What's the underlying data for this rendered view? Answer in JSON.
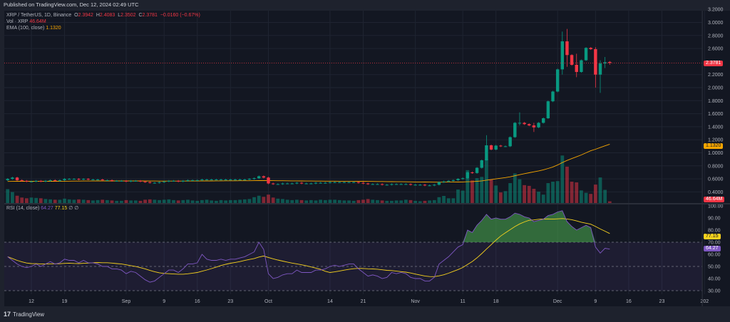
{
  "header": {
    "published": "Published on TradingView.com, Dec 12, 2024 02:49 UTC"
  },
  "legend": {
    "symbol": "XRP / TetherUS, 1D, Binance",
    "o_label": "O",
    "o": "2.3942",
    "h_label": "H",
    "h": "2.4083",
    "l_label": "L",
    "l": "2.3502",
    "c_label": "C",
    "c": "2.3781",
    "change": "−0.0160 (−0.67%)",
    "vol_label": "Vol · XRP",
    "vol": "46.64M",
    "ema_label": "EMA (100, close)",
    "ema": "1.1320",
    "rsi_label": "RSI (14, close)",
    "rsi": "64.27",
    "rsi_ma": "77.15",
    "icons": "∅ ∅"
  },
  "price_axis": [
    "3.2000",
    "3.0000",
    "2.8000",
    "2.6000",
    "2.2000",
    "2.0000",
    "1.8000",
    "1.6000",
    "1.4000",
    "1.2000",
    "1.0000",
    "0.8000",
    "0.6000",
    "0.4000"
  ],
  "rsi_axis": [
    "100.00",
    "90.00",
    "80.00",
    "70.00",
    "60.00",
    "50.00",
    "40.00",
    "30.00"
  ],
  "badges": {
    "price": "2.3781",
    "ema": "1.1320",
    "volume": "46.64M",
    "rsi_ma": "77.15",
    "rsi": "64.27"
  },
  "x_axis": [
    {
      "label": "12",
      "day": 5
    },
    {
      "label": "19",
      "day": 12
    },
    {
      "label": "Sep",
      "day": 25
    },
    {
      "label": "9",
      "day": 33
    },
    {
      "label": "16",
      "day": 40
    },
    {
      "label": "23",
      "day": 47
    },
    {
      "label": "Oct",
      "day": 55
    },
    {
      "label": "14",
      "day": 68
    },
    {
      "label": "21",
      "day": 75
    },
    {
      "label": "Nov",
      "day": 86
    },
    {
      "label": "11",
      "day": 96
    },
    {
      "label": "18",
      "day": 103
    },
    {
      "label": "Dec",
      "day": 116
    },
    {
      "label": "9",
      "day": 124
    },
    {
      "label": "16",
      "day": 131
    },
    {
      "label": "23",
      "day": 138
    },
    {
      "label": "202",
      "day": 147
    }
  ],
  "footer": {
    "logo": "17",
    "brand": "TradingView"
  },
  "colors": {
    "up": "#089981",
    "down": "#f23645",
    "ema": "#f7a600",
    "rsi": "#7e57c2",
    "rsi_ma": "#f7d21e",
    "bg": "#131722",
    "panel": "#1e222d"
  },
  "chart_data": {
    "type": "candlestick",
    "first_date": "2024-08-07",
    "last_date": "2024-12-12",
    "price_range": [
      0.35,
      3.2
    ],
    "closes": [
      0.6,
      0.62,
      0.58,
      0.57,
      0.56,
      0.56,
      0.57,
      0.56,
      0.57,
      0.58,
      0.57,
      0.58,
      0.6,
      0.6,
      0.6,
      0.59,
      0.6,
      0.59,
      0.59,
      0.59,
      0.58,
      0.58,
      0.57,
      0.57,
      0.57,
      0.56,
      0.57,
      0.57,
      0.56,
      0.55,
      0.54,
      0.54,
      0.55,
      0.56,
      0.57,
      0.57,
      0.56,
      0.57,
      0.58,
      0.58,
      0.58,
      0.59,
      0.59,
      0.59,
      0.59,
      0.59,
      0.59,
      0.59,
      0.59,
      0.59,
      0.59,
      0.6,
      0.61,
      0.64,
      0.62,
      0.53,
      0.52,
      0.52,
      0.53,
      0.53,
      0.53,
      0.54,
      0.53,
      0.53,
      0.53,
      0.54,
      0.54,
      0.54,
      0.55,
      0.55,
      0.55,
      0.55,
      0.55,
      0.55,
      0.54,
      0.53,
      0.52,
      0.52,
      0.52,
      0.51,
      0.51,
      0.52,
      0.52,
      0.52,
      0.52,
      0.51,
      0.51,
      0.51,
      0.5,
      0.5,
      0.51,
      0.55,
      0.56,
      0.57,
      0.58,
      0.6,
      0.61,
      0.7,
      0.69,
      0.77,
      0.885,
      1.115,
      1.05,
      1.11,
      1.1,
      1.1,
      1.24,
      1.46,
      1.46,
      1.44,
      1.42,
      1.39,
      1.46,
      1.53,
      1.79,
      1.94,
      2.28,
      2.71,
      2.5,
      2.35,
      2.24,
      2.42,
      2.61,
      2.59,
      2.2,
      2.37,
      2.39,
      2.3781
    ],
    "last_candle": {
      "open": 2.3942,
      "high": 2.4083,
      "low": 2.3502,
      "close": 2.3781
    },
    "wicks_late": {
      "2024-11-16": [
        1.27,
        0.88
      ],
      "2024-11-23": [
        1.62,
        1.42
      ],
      "2024-11-26": [
        1.46,
        1.32
      ],
      "2024-12-02": [
        2.86,
        2.2
      ],
      "2024-12-03": [
        2.9,
        2.32
      ],
      "2024-12-05": [
        2.52,
        2.16
      ],
      "2024-12-09": [
        2.62,
        2.0
      ],
      "2024-12-10": [
        2.42,
        1.92
      ],
      "2024-12-11": [
        2.47,
        2.3
      ]
    },
    "volume_m": [
      380,
      300,
      200,
      150,
      130,
      150,
      140,
      130,
      110,
      100,
      90,
      90,
      120,
      100,
      90,
      100,
      90,
      80,
      70,
      80,
      90,
      80,
      70,
      60,
      60,
      80,
      70,
      70,
      60,
      90,
      100,
      90,
      80,
      90,
      100,
      80,
      70,
      80,
      90,
      70,
      60,
      80,
      90,
      70,
      60,
      80,
      70,
      80,
      80,
      90,
      100,
      110,
      160,
      200,
      170,
      230,
      150,
      120,
      110,
      90,
      80,
      90,
      80,
      70,
      80,
      70,
      90,
      80,
      90,
      90,
      80,
      70,
      70,
      60,
      80,
      90,
      110,
      90,
      80,
      70,
      60,
      60,
      70,
      70,
      90,
      80,
      60,
      50,
      60,
      70,
      80,
      160,
      195,
      130,
      130,
      370,
      340,
      900,
      620,
      680,
      715,
      1200,
      650,
      480,
      290,
      325,
      545,
      810,
      650,
      490,
      470,
      390,
      310,
      230,
      545,
      585,
      600,
      1300,
      995,
      585,
      565,
      345,
      280,
      250,
      505,
      700,
      360,
      46.64
    ],
    "ema_period": 100,
    "ema_last": 1.132,
    "rsi": [
      58,
      55,
      52,
      50,
      49,
      50,
      52,
      50,
      52,
      54,
      52,
      53,
      56,
      55,
      55,
      53,
      55,
      53,
      53,
      52,
      50,
      50,
      48,
      48,
      47,
      44,
      46,
      45,
      42,
      39,
      37,
      38,
      41,
      44,
      47,
      47,
      45,
      48,
      52,
      52,
      53,
      60,
      56,
      55,
      55,
      56,
      55,
      56,
      56,
      57,
      58,
      60,
      62,
      70,
      64,
      44,
      40,
      41,
      43,
      44,
      44,
      47,
      45,
      45,
      45,
      47,
      47,
      48,
      50,
      51,
      50,
      51,
      52,
      52,
      48,
      45,
      42,
      43,
      42,
      40,
      41,
      45,
      44,
      45,
      44,
      41,
      40,
      40,
      38,
      38,
      41,
      52,
      55,
      58,
      62,
      66,
      68,
      80,
      78,
      84,
      88,
      93,
      89,
      90,
      89,
      89,
      91,
      94,
      93,
      91,
      90,
      87,
      88,
      89,
      92,
      93,
      95,
      96,
      87,
      83,
      80,
      82,
      84,
      82,
      66,
      61,
      65,
      64.27
    ],
    "rsi_range": [
      25,
      100
    ],
    "rsi_bands": [
      70,
      50,
      30
    ],
    "rsi_ma_last": 77.15,
    "grid": true
  }
}
